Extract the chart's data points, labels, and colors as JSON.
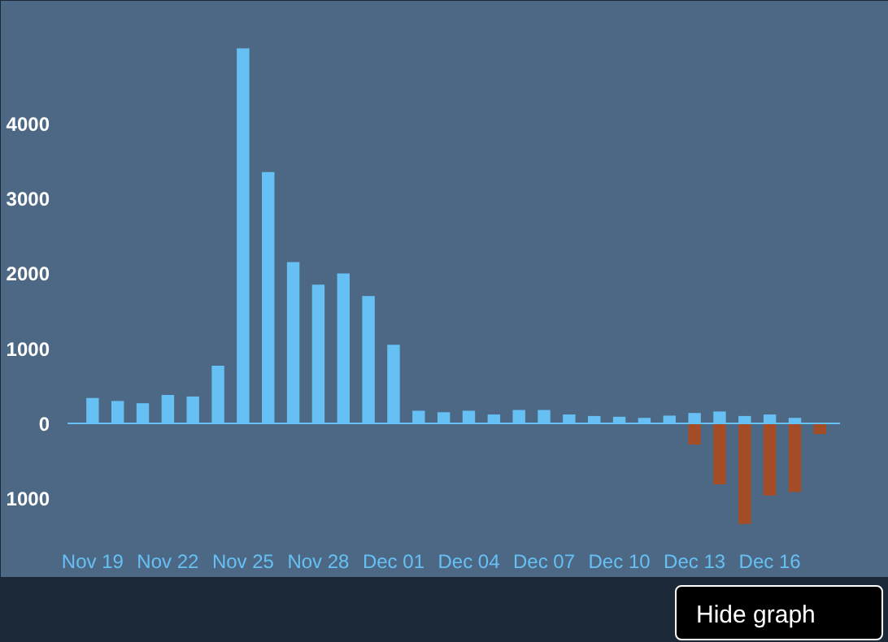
{
  "chart_data": {
    "type": "bar",
    "categories": [
      "Nov 19",
      null,
      null,
      "Nov 22",
      null,
      null,
      "Nov 25",
      null,
      null,
      "Nov 28",
      null,
      null,
      "Dec 01",
      null,
      null,
      "Dec 04",
      null,
      null,
      "Dec 07",
      null,
      null,
      "Dec 10",
      null,
      null,
      "Dec 13",
      null,
      null,
      "Dec 16",
      null,
      null
    ],
    "series": [
      {
        "color": "#66c0f4",
        "values": [
          340,
          300,
          270,
          380,
          360,
          770,
          5000,
          3350,
          2150,
          1850,
          2000,
          1700,
          1050,
          170,
          150,
          170,
          120,
          180,
          180,
          120,
          100,
          90,
          75,
          105,
          140,
          160,
          100,
          120,
          75,
          null
        ]
      },
      {
        "color": "#a34c25",
        "values": [
          null,
          null,
          null,
          null,
          null,
          null,
          null,
          null,
          null,
          null,
          null,
          null,
          null,
          null,
          null,
          null,
          null,
          null,
          null,
          null,
          null,
          null,
          null,
          null,
          -280,
          -810,
          -1340,
          -960,
          -910,
          -140
        ]
      }
    ],
    "ylim": [
      -1450,
      5200
    ],
    "yticks": [
      {
        "value": -1000,
        "label": "1000"
      },
      0,
      1000,
      2000,
      3000,
      4000
    ],
    "ref_lines": [
      {
        "axis": "y",
        "value": 0,
        "color": "#66c0f4"
      }
    ],
    "grid": false,
    "annotations": [
      "Hide graph"
    ]
  }
}
